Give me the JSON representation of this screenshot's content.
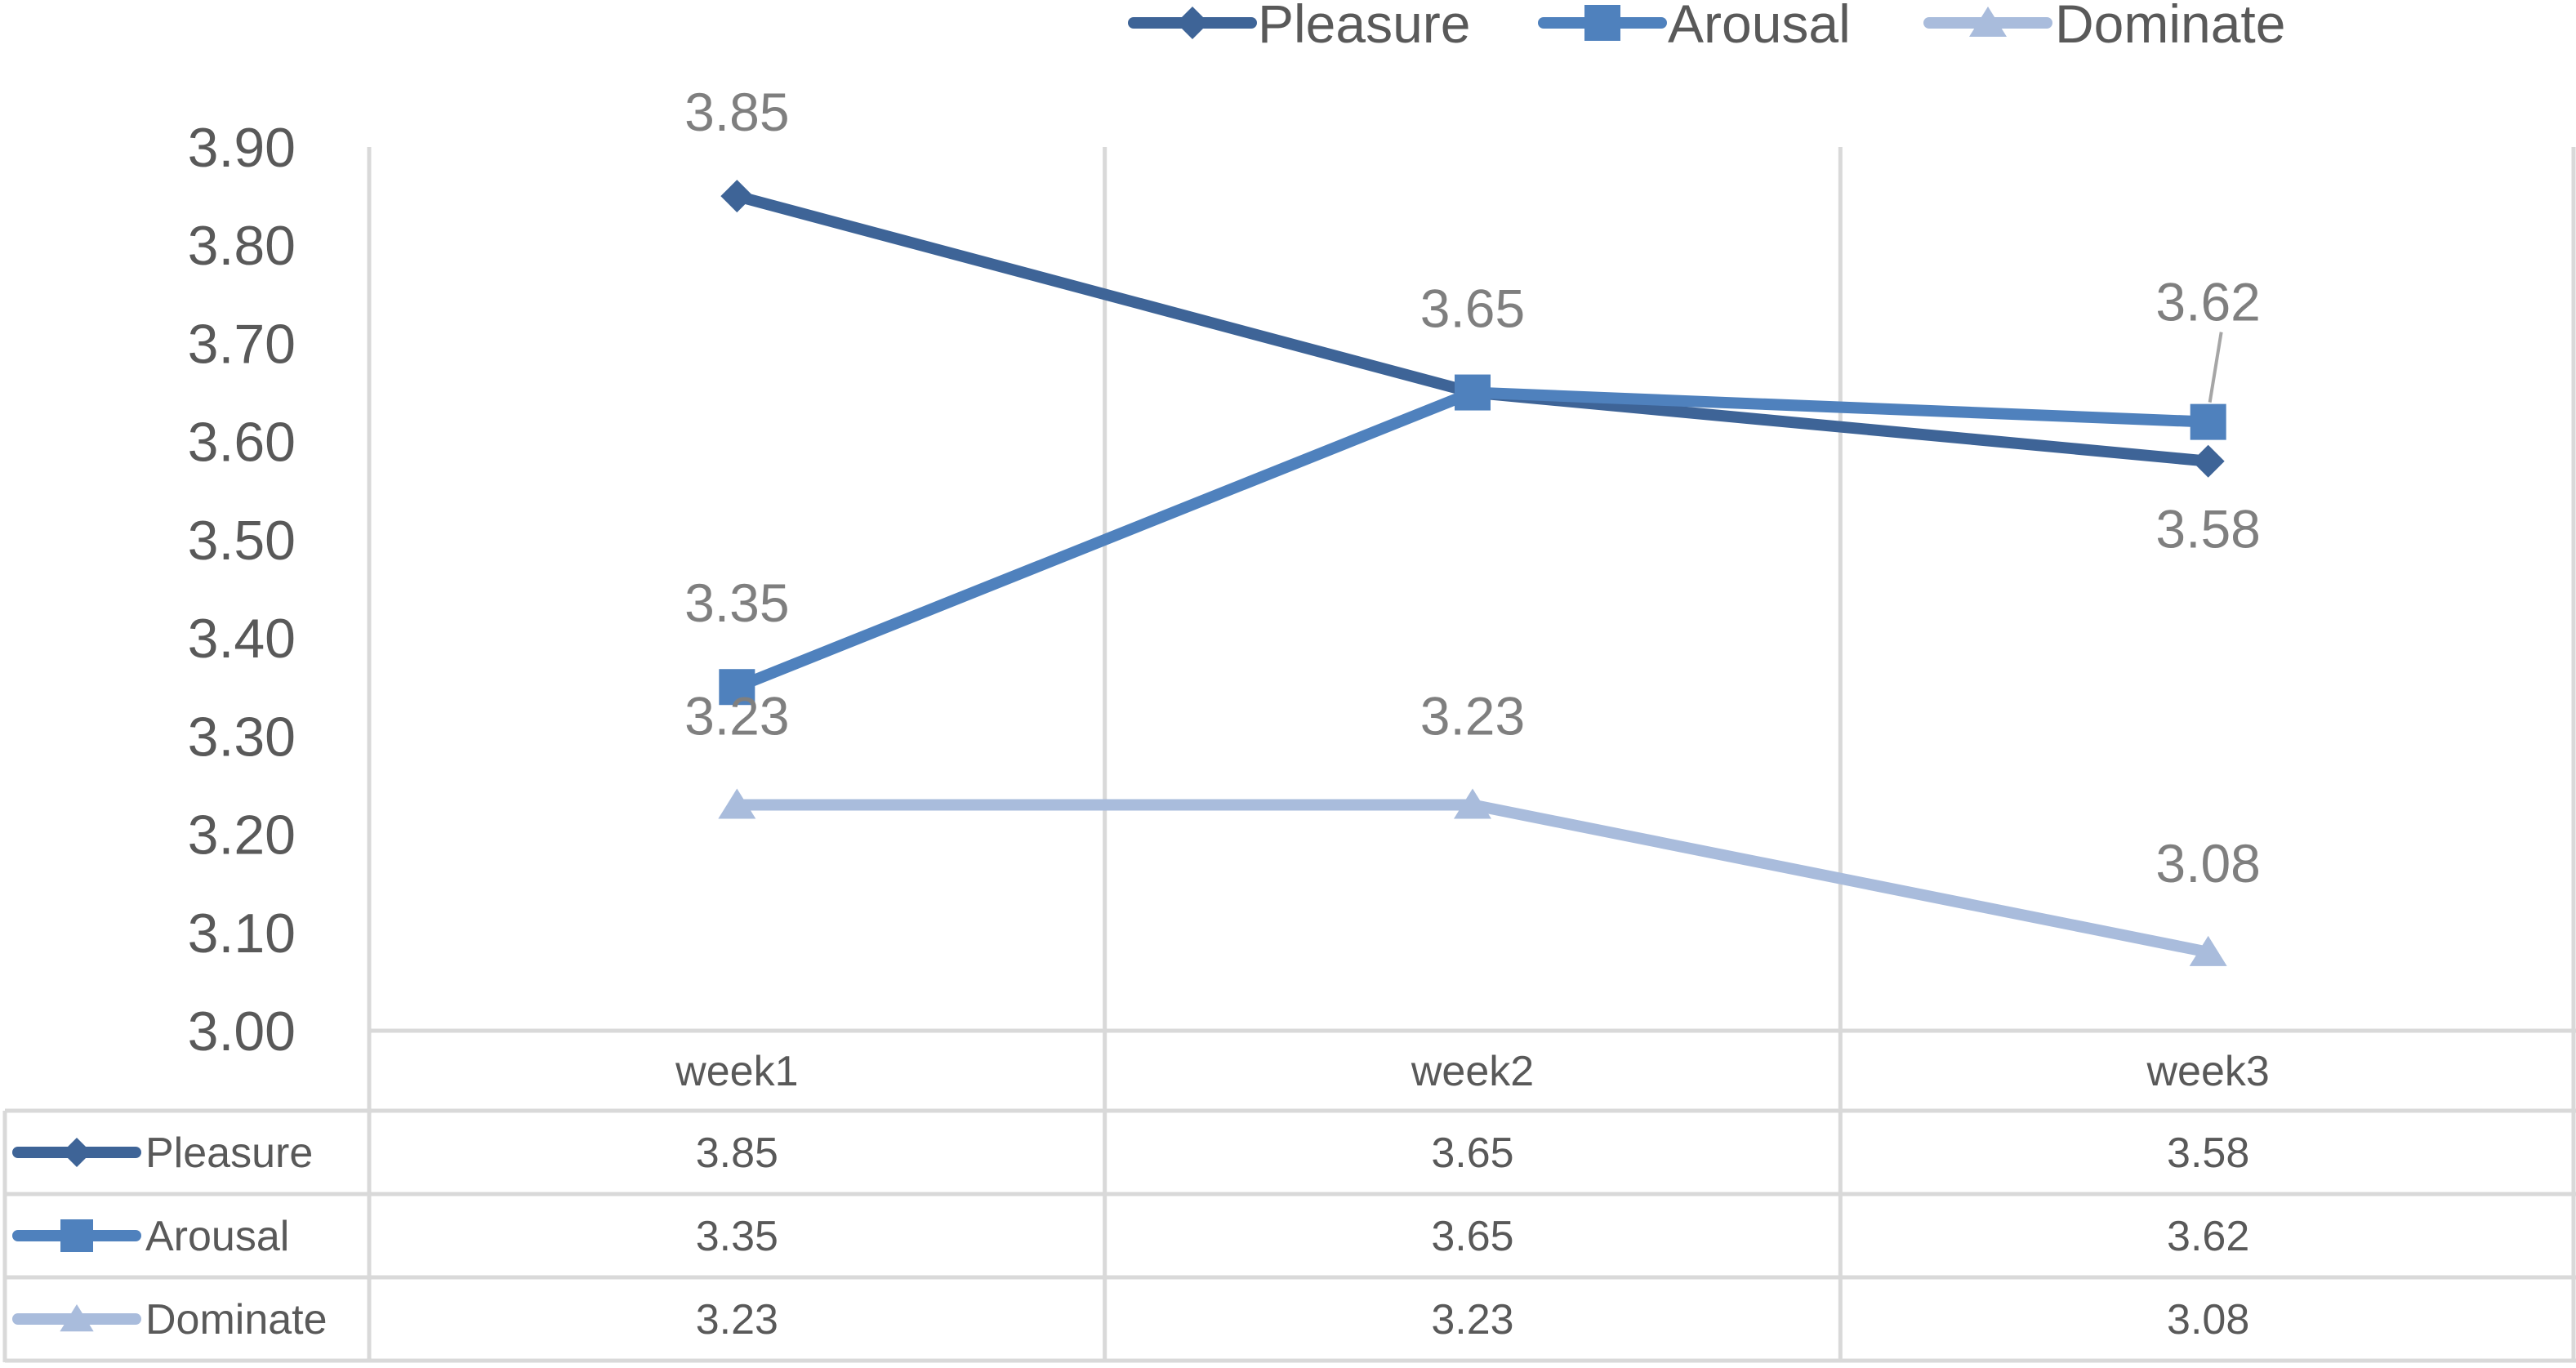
{
  "chart_data": {
    "type": "line",
    "categories": [
      "week1",
      "week2",
      "week3"
    ],
    "series": [
      {
        "name": "Pleasure",
        "values": [
          3.85,
          3.65,
          3.58
        ],
        "color": "#3E6497",
        "marker": "diamond"
      },
      {
        "name": "Arousal",
        "values": [
          3.35,
          3.65,
          3.62
        ],
        "color": "#4F81BD",
        "marker": "square"
      },
      {
        "name": "Dominate",
        "values": [
          3.23,
          3.23,
          3.08
        ],
        "color": "#A9BCDC",
        "marker": "triangle"
      }
    ],
    "data_labels": [
      [
        "3.85",
        "",
        "3.58"
      ],
      [
        "3.35",
        "3.65",
        "3.62"
      ],
      [
        "3.23",
        "3.23",
        "3.08"
      ]
    ],
    "table": [
      [
        "3.85",
        "3.65",
        "3.58"
      ],
      [
        "3.35",
        "3.65",
        "3.62"
      ],
      [
        "3.23",
        "3.23",
        "3.08"
      ]
    ],
    "y_ticks": [
      "3.00",
      "3.10",
      "3.20",
      "3.30",
      "3.40",
      "3.50",
      "3.60",
      "3.70",
      "3.80",
      "3.90"
    ],
    "ylim": [
      3.0,
      3.9
    ],
    "title": "",
    "xlabel": "",
    "ylabel": "",
    "grid": "vertical",
    "legend_position": "top",
    "data_table": true,
    "colors": {
      "grid": "#D9D9D9",
      "text": "#595959",
      "label": "#7F7F7F"
    }
  }
}
